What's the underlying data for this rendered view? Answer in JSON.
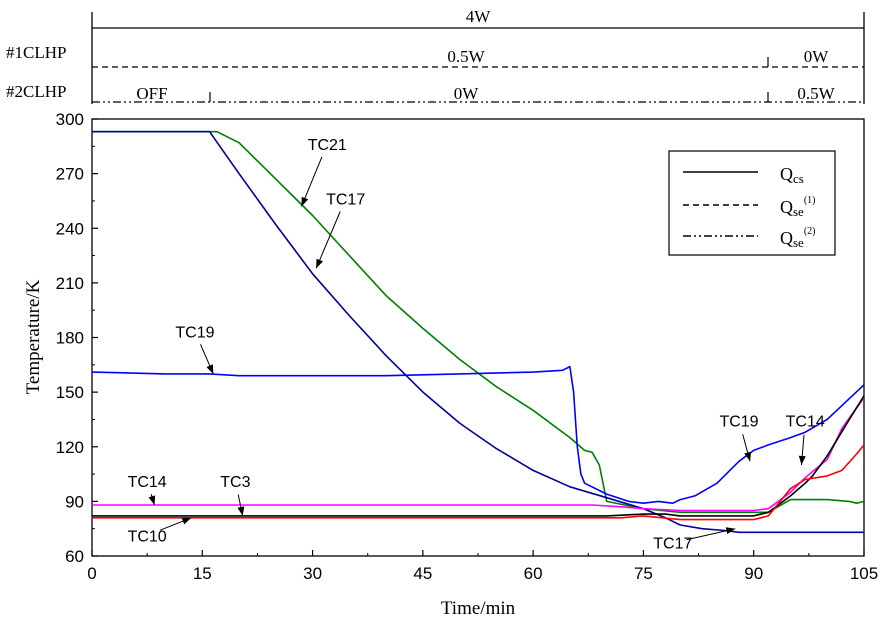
{
  "chart_data": {
    "type": "line",
    "xlabel": "Time/min",
    "ylabel": "Temperature/K",
    "xlim": [
      0,
      105
    ],
    "ylim": [
      60,
      300
    ],
    "xticks": [
      0,
      15,
      30,
      45,
      60,
      75,
      90,
      105
    ],
    "yticks": [
      60,
      90,
      120,
      150,
      180,
      210,
      240,
      270,
      300
    ],
    "grid": false,
    "legend_position": "top-right",
    "legend": [
      {
        "label": "Q",
        "sub": "cs",
        "sup": "",
        "style": "solid"
      },
      {
        "label": "Q",
        "sub": "se",
        "sup": "(1)",
        "style": "dashed"
      },
      {
        "label": "Q",
        "sub": "se",
        "sup": "(2)",
        "style": "dashdotdot"
      }
    ],
    "power_panel": {
      "rows": [
        {
          "name": "",
          "style": "solid",
          "segments": [
            {
              "from": 0,
              "to": 105,
              "label": "4W"
            }
          ]
        },
        {
          "name": "#1CLHP",
          "style": "dashed",
          "segments": [
            {
              "from": 0,
              "to": 92,
              "label": "0.5W"
            },
            {
              "from": 92,
              "to": 105,
              "label": "0W"
            }
          ]
        },
        {
          "name": "#2CLHP",
          "style": "dashdotdot",
          "segments": [
            {
              "from": 0,
              "to": 16,
              "label": "OFF"
            },
            {
              "from": 16,
              "to": 92,
              "label": "0W"
            },
            {
              "from": 92,
              "to": 105,
              "label": "0.5W"
            }
          ]
        }
      ]
    },
    "series": [
      {
        "name": "TC21",
        "color": "#008000",
        "x": [
          0,
          17,
          20,
          25,
          30,
          35,
          40,
          45,
          50,
          55,
          60,
          65,
          67,
          68,
          69,
          70,
          75,
          80,
          85,
          88,
          92,
          95,
          100,
          103,
          104,
          105
        ],
        "y": [
          293,
          293,
          287,
          267,
          247,
          225,
          203,
          185,
          168,
          153,
          140,
          125,
          118,
          117,
          110,
          90,
          86,
          84,
          84,
          84,
          84,
          91,
          91,
          90,
          89,
          90
        ]
      },
      {
        "name": "TC17",
        "color": "#0000a0",
        "x": [
          0,
          16,
          20,
          25,
          30,
          35,
          40,
          45,
          50,
          55,
          60,
          65,
          70,
          75,
          78,
          80,
          83,
          86,
          88,
          90,
          95,
          100,
          105
        ],
        "y": [
          293,
          293,
          270,
          242,
          215,
          192,
          170,
          150,
          133,
          119,
          107,
          98,
          92,
          86,
          81,
          77,
          75,
          74,
          73,
          73,
          73,
          73,
          73
        ]
      },
      {
        "name": "TC19",
        "color": "#0000ff",
        "x": [
          0,
          10,
          16,
          20,
          30,
          40,
          50,
          60,
          64,
          65,
          65.5,
          66,
          66.5,
          67,
          70,
          73,
          75,
          77,
          79,
          80,
          82,
          85,
          88,
          90,
          92,
          95,
          97,
          100,
          105
        ],
        "y": [
          161,
          160,
          160,
          159,
          159,
          159,
          160,
          161,
          162,
          164,
          150,
          120,
          105,
          100,
          94,
          90,
          89,
          90,
          89,
          91,
          93,
          100,
          112,
          118,
          121,
          125,
          128,
          135,
          154
        ]
      },
      {
        "name": "TC14",
        "color": "#ff00ff",
        "x": [
          0,
          20,
          40,
          60,
          68,
          72,
          75,
          80,
          85,
          90,
          92,
          95,
          97,
          100,
          102,
          105
        ],
        "y": [
          88,
          88,
          88,
          88,
          88,
          87,
          86,
          85,
          85,
          85,
          86,
          95,
          103,
          113,
          130,
          147
        ]
      },
      {
        "name": "TC3",
        "color": "#000000",
        "x": [
          0,
          20,
          40,
          60,
          70,
          75,
          78,
          80,
          85,
          90,
          92,
          95,
          97,
          98,
          100,
          103,
          105
        ],
        "y": [
          82,
          82,
          82,
          82,
          82,
          83,
          83,
          82,
          82,
          82,
          84,
          93,
          100,
          104,
          115,
          135,
          148
        ]
      },
      {
        "name": "TC10",
        "color": "#ff0000",
        "x": [
          0,
          20,
          40,
          60,
          68,
          72,
          75,
          80,
          85,
          90,
          92,
          95,
          97,
          100,
          102,
          104,
          105
        ],
        "y": [
          81,
          81,
          81,
          81,
          81,
          81,
          82,
          80,
          80,
          80,
          82,
          97,
          102,
          104,
          107,
          116,
          121
        ]
      }
    ],
    "annotations": [
      {
        "text": "TC21",
        "x": 32,
        "y": 283,
        "arrow_to": [
          28.5,
          252
        ]
      },
      {
        "text": "TC17",
        "x": 34.5,
        "y": 253,
        "arrow_to": [
          30.5,
          218
        ]
      },
      {
        "text": "TC19",
        "x": 14,
        "y": 180,
        "arrow_to": [
          16.5,
          160
        ]
      },
      {
        "text": "TC14",
        "x": 7.5,
        "y": 98,
        "arrow_to": [
          8.5,
          88
        ]
      },
      {
        "text": "TC3",
        "x": 19.5,
        "y": 98,
        "arrow_to": [
          20.5,
          82
        ]
      },
      {
        "text": "TC10",
        "x": 7.5,
        "y": 68,
        "arrow_to": [
          13.5,
          81
        ]
      },
      {
        "text": "TC19",
        "x": 88,
        "y": 131,
        "arrow_to": [
          89.5,
          112
        ]
      },
      {
        "text": "TC14",
        "x": 97,
        "y": 131,
        "arrow_to": [
          96.5,
          110
        ]
      },
      {
        "text": "TC17",
        "x": 79,
        "y": 64,
        "arrow_to": [
          87.5,
          75
        ]
      }
    ]
  }
}
